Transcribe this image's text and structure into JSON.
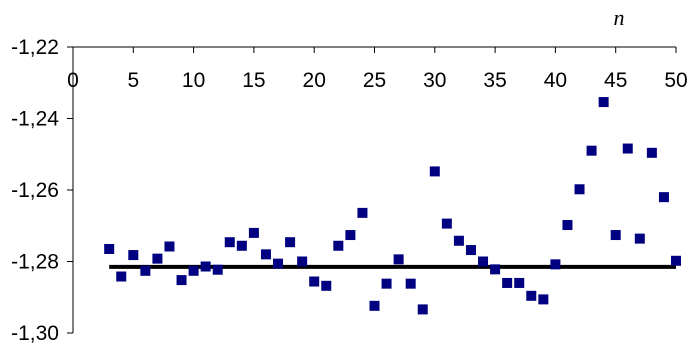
{
  "chart_data": {
    "type": "scatter",
    "title": "",
    "xlabel": "n",
    "ylabel": "",
    "xlim": [
      0,
      50
    ],
    "ylim": [
      -1.3,
      -1.22
    ],
    "x_ticks": [
      0,
      5,
      10,
      15,
      20,
      25,
      30,
      35,
      40,
      45,
      50
    ],
    "x_tick_labels": [
      "0",
      "5",
      "10",
      "15",
      "20",
      "25",
      "30",
      "35",
      "40",
      "45",
      "50"
    ],
    "y_ticks": [
      -1.22,
      -1.24,
      -1.26,
      -1.28,
      -1.3
    ],
    "y_tick_labels": [
      "-1,22",
      "-1,24",
      "-1,26",
      "-1,28",
      "-1,30"
    ],
    "x_axis_position": "top",
    "grid": false,
    "legend": "none",
    "marker_color": "#000080",
    "line_color": "#000000",
    "series": [
      {
        "marker": "square",
        "x": [
          3,
          4,
          5,
          6,
          7,
          8,
          9,
          10,
          11,
          12,
          13,
          14,
          15,
          16,
          17,
          18,
          19,
          20,
          21,
          22,
          23,
          24,
          25,
          26,
          27,
          28,
          29,
          30,
          31,
          32,
          33,
          34,
          35,
          36,
          37,
          38,
          39,
          40,
          41,
          42,
          43,
          44,
          45,
          46,
          47,
          48,
          49,
          50
        ],
        "y": [
          -1.2765,
          -1.2842,
          -1.2782,
          -1.2826,
          -1.2792,
          -1.2758,
          -1.2852,
          -1.2826,
          -1.2814,
          -1.2823,
          -1.2746,
          -1.2756,
          -1.272,
          -1.278,
          -1.2806,
          -1.2746,
          -1.28,
          -1.2856,
          -1.2868,
          -1.2756,
          -1.2726,
          -1.2664,
          -1.2924,
          -1.2862,
          -1.2794,
          -1.2862,
          -1.2934,
          -1.2548,
          -1.2694,
          -1.2742,
          -1.2768,
          -1.28,
          -1.2822,
          -1.286,
          -1.286,
          -1.2896,
          -1.2906,
          -1.2808,
          -1.2698,
          -1.2598,
          -1.249,
          -1.2354,
          -1.2726,
          -1.2484,
          -1.2736,
          -1.2496,
          -1.262,
          -1.2798
        ]
      },
      {
        "type": "line",
        "x": [
          3,
          50
        ],
        "y": [
          -1.2815,
          -1.2815
        ]
      }
    ]
  }
}
